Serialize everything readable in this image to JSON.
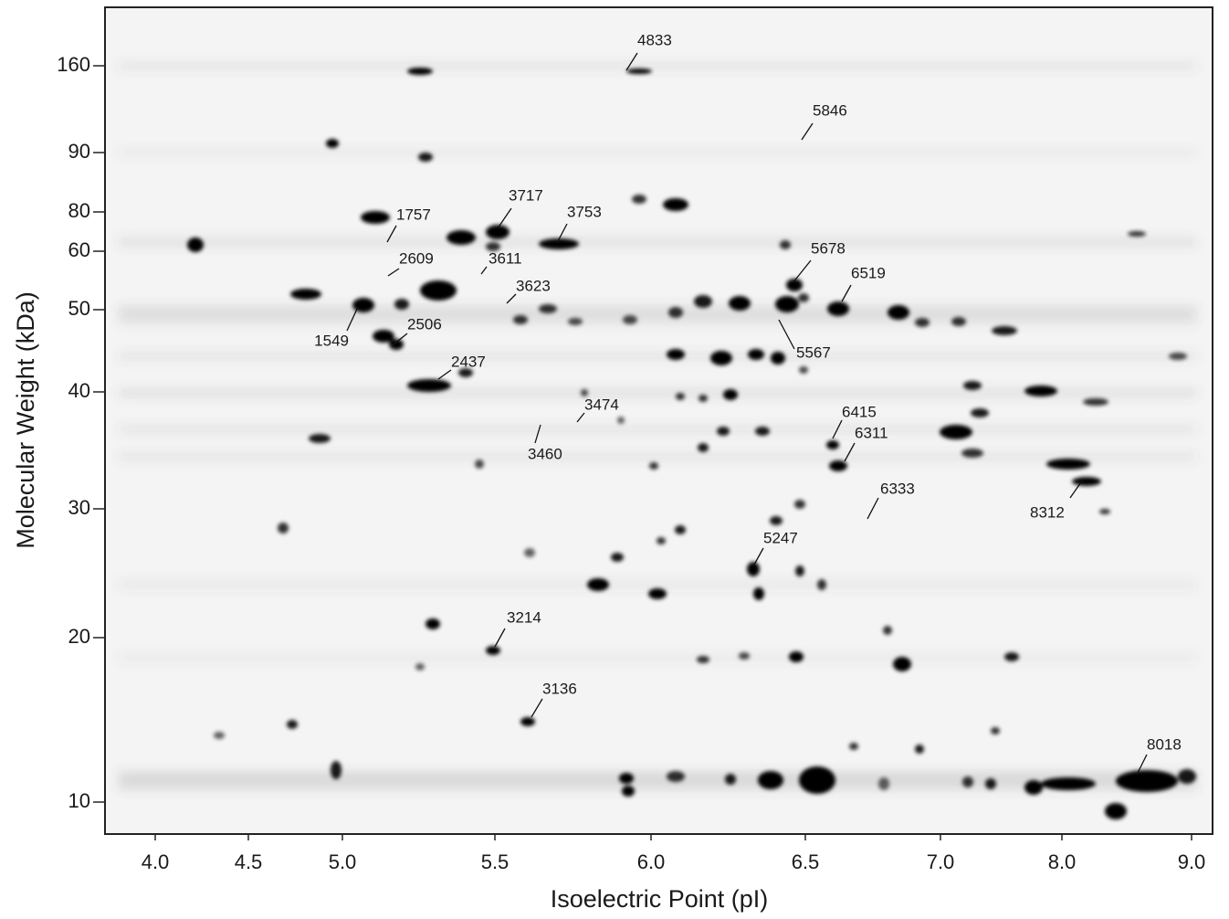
{
  "figure": {
    "x_axis": {
      "label": "Isoelectric Point (pI)",
      "ticks": [
        "4.0",
        "4.5",
        "5.0",
        "5.5",
        "6.0",
        "6.5",
        "7.0",
        "8.0",
        "9.0"
      ]
    },
    "y_axis": {
      "label": "Molecular Weight (kDa)",
      "ticks": [
        "160",
        "90",
        "80",
        "60",
        "50",
        "40",
        "30",
        "20",
        "10"
      ]
    },
    "spot_labels": [
      "4833",
      "5846",
      "1757",
      "3717",
      "3753",
      "2609",
      "3611",
      "3623",
      "5678",
      "6519",
      "1549",
      "2506",
      "5567",
      "2437",
      "3474",
      "3460",
      "6415",
      "6311",
      "6333",
      "8312",
      "5247",
      "3214",
      "3136",
      "8018"
    ]
  }
}
